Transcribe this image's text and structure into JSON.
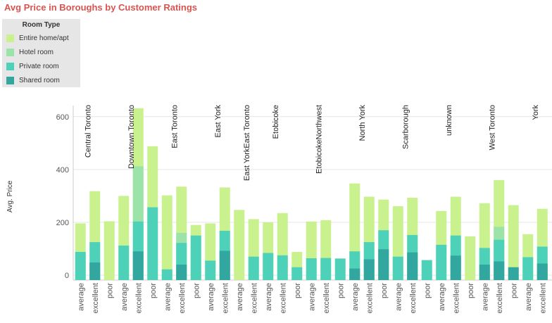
{
  "chart_data": {
    "type": "bar",
    "stacked": true,
    "title": "Avg Price in Boroughs by Customer Ratings",
    "ylabel": "Avg. Price",
    "xlabel": "",
    "ylim": [
      -5,
      650
    ],
    "yticks": [
      0,
      200,
      400,
      600
    ],
    "legend_title": "Room Type",
    "legend_position": "top-left",
    "series": [
      {
        "name": "Shared room",
        "color": "#31a7a0"
      },
      {
        "name": "Private room",
        "color": "#4ed1b9"
      },
      {
        "name": "Hotel room",
        "color": "#9be3a8"
      },
      {
        "name": "Entire home/apt",
        "color": "#c9f28e"
      }
    ],
    "groups": [
      {
        "name": "Central Toronto",
        "bars": [
          {
            "category": "average",
            "stack": [
              0,
              88,
              0,
              196
            ]
          },
          {
            "category": "excellent",
            "stack": [
              48,
              125,
              0,
              318
            ]
          },
          {
            "category": "poor",
            "stack": [
              0,
              0,
              0,
              204
            ]
          }
        ]
      },
      {
        "name": "Downtown Toronto",
        "bars": [
          {
            "category": "average",
            "stack": [
              0,
              112,
              0,
              300
            ]
          },
          {
            "category": "excellent",
            "stack": [
              90,
              203,
              412,
              632
            ]
          },
          {
            "category": "poor",
            "stack": [
              0,
              257,
              0,
              488
            ]
          }
        ]
      },
      {
        "name": "East Toronto",
        "bars": [
          {
            "category": "average",
            "stack": [
              0,
              22,
              0,
              302
            ]
          },
          {
            "category": "excellent",
            "stack": [
              40,
              122,
              160,
              335
            ]
          },
          {
            "category": "poor",
            "stack": [
              0,
              150,
              0,
              190
            ]
          }
        ]
      },
      {
        "name": "East York",
        "bars": [
          {
            "category": "average",
            "stack": [
              0,
              55,
              0,
              196
            ]
          },
          {
            "category": "excellent",
            "stack": [
              92,
              168,
              0,
              332
            ]
          }
        ]
      },
      {
        "name": "East YorkEast Toronto",
        "bars": [
          {
            "category": "average",
            "stack": [
              0,
              0,
              0,
              247
            ]
          },
          {
            "category": "excellent",
            "stack": [
              0,
              70,
              0,
              212
            ]
          }
        ]
      },
      {
        "name": "Etobicoke",
        "bars": [
          {
            "category": "average",
            "stack": [
              0,
              84,
              0,
              200
            ]
          },
          {
            "category": "excellent",
            "stack": [
              0,
              75,
              0,
              235
            ]
          },
          {
            "category": "poor",
            "stack": [
              0,
              30,
              0,
              88
            ]
          }
        ]
      },
      {
        "name": "EtobicokeNorthwest",
        "bars": [
          {
            "category": "average",
            "stack": [
              0,
              64,
              0,
              203
            ]
          },
          {
            "category": "excellent",
            "stack": [
              0,
              65,
              0,
              208
            ]
          },
          {
            "category": "poor",
            "stack": [
              0,
              63,
              0,
              0
            ]
          }
        ]
      },
      {
        "name": "North York",
        "bars": [
          {
            "category": "average",
            "stack": [
              25,
              90,
              0,
              347
            ]
          },
          {
            "category": "excellent",
            "stack": [
              60,
              125,
              0,
              297
            ]
          },
          {
            "category": "poor",
            "stack": [
              98,
              170,
              0,
              286
            ]
          }
        ]
      },
      {
        "name": "Scarborough",
        "bars": [
          {
            "category": "average",
            "stack": [
              0,
              70,
              0,
              261
            ]
          },
          {
            "category": "excellent",
            "stack": [
              86,
              152,
              0,
              293
            ]
          },
          {
            "category": "poor",
            "stack": [
              0,
              57,
              0,
              0
            ]
          }
        ]
      },
      {
        "name": "unknown",
        "bars": [
          {
            "category": "average",
            "stack": [
              0,
              115,
              0,
              243
            ]
          },
          {
            "category": "excellent",
            "stack": [
              74,
              150,
              0,
              297
            ]
          },
          {
            "category": "poor",
            "stack": [
              0,
              0,
              0,
              147
            ]
          }
        ]
      },
      {
        "name": "West Toronto",
        "bars": [
          {
            "category": "average",
            "stack": [
              40,
              103,
              0,
              272
            ]
          },
          {
            "category": "excellent",
            "stack": [
              52,
              134,
              183,
              360
            ]
          },
          {
            "category": "poor",
            "stack": [
              30,
              0,
              0,
              265
            ]
          }
        ]
      },
      {
        "name": "York",
        "bars": [
          {
            "category": "average",
            "stack": [
              0,
              68,
              0,
              155
            ]
          },
          {
            "category": "excellent",
            "stack": [
              44,
              108,
              0,
              251
            ]
          }
        ]
      }
    ]
  }
}
